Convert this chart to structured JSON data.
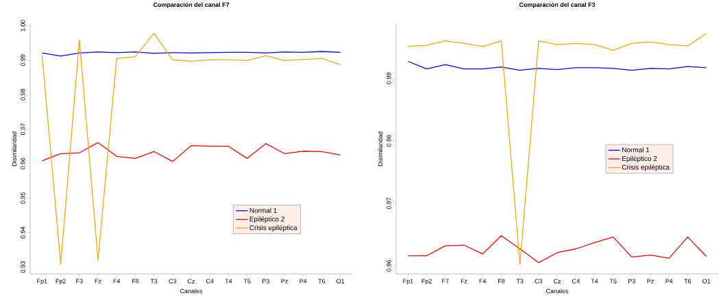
{
  "chart_data": [
    {
      "type": "line",
      "title": "Comparación del canal F7",
      "xlabel": "Canales",
      "ylabel": "Disimilaridad",
      "categories": [
        "Fp1",
        "Fp2",
        "F3",
        "Fz",
        "F4",
        "F8",
        "T3",
        "C3",
        "Cz",
        "C4",
        "T4",
        "T5",
        "P3",
        "Pz",
        "P4",
        "T6",
        "O1"
      ],
      "series": [
        {
          "name": "Normal 1",
          "color": "#0000ff",
          "values": [
            0.9921,
            0.9912,
            0.9921,
            0.9924,
            0.9922,
            0.9924,
            0.992,
            0.9922,
            0.9921,
            0.9922,
            0.9923,
            0.9923,
            0.9921,
            0.9924,
            0.9923,
            0.9925,
            0.9923
          ]
        },
        {
          "name": "Epiléptico 2",
          "color": "#ff0000",
          "values": [
            0.9608,
            0.9629,
            0.9631,
            0.9661,
            0.9621,
            0.9615,
            0.9635,
            0.9606,
            0.9652,
            0.965,
            0.965,
            0.9615,
            0.9658,
            0.9629,
            0.9636,
            0.9635,
            0.9625
          ]
        },
        {
          "name": "Crisis epiléptica",
          "color": "#ffa500",
          "values": [
            0.9914,
            0.9308,
            0.9959,
            0.932,
            0.9905,
            0.991,
            0.9978,
            0.9901,
            0.9897,
            0.9901,
            0.9901,
            0.9899,
            0.9913,
            0.9899,
            0.9902,
            0.9905,
            0.9887
          ]
        }
      ],
      "ylim": [
        0.928,
        1.0005
      ],
      "yticks": [
        0.93,
        0.94,
        0.95,
        0.96,
        0.97,
        0.98,
        0.99,
        {
          "value": 1.0,
          "label": "1.00"
        }
      ],
      "legend": "bottom right"
    },
    {
      "type": "line",
      "title": "Comparación del canal F3",
      "xlabel": "Canales",
      "ylabel": "Disimilaridad",
      "categories": [
        "Fp1",
        "Fp2",
        "F7",
        "Fz",
        "F4",
        "F8",
        "T3",
        "C3",
        "Cz",
        "C4",
        "T4",
        "T5",
        "P3",
        "Pz",
        "P4",
        "T6",
        "O1"
      ],
      "series": [
        {
          "name": "Normal 1",
          "color": "#0000ff",
          "values": [
            0.9927,
            0.9915,
            0.9922,
            0.9915,
            0.9915,
            0.9918,
            0.9913,
            0.9916,
            0.9914,
            0.9917,
            0.9917,
            0.9916,
            0.9913,
            0.9916,
            0.9915,
            0.9919,
            0.9917
          ]
        },
        {
          "name": "Epiléptico 2",
          "color": "#ff0000",
          "values": [
            0.9616,
            0.9616,
            0.9632,
            0.9633,
            0.9619,
            0.9648,
            0.9627,
            0.9605,
            0.9621,
            0.9627,
            0.9637,
            0.9646,
            0.9614,
            0.9617,
            0.9612,
            0.9646,
            0.9615
          ]
        },
        {
          "name": "Crisis epiléptica",
          "color": "#ffa500",
          "values": [
            0.9951,
            0.9953,
            0.996,
            0.9956,
            0.9951,
            0.996,
            0.9602,
            0.996,
            0.9954,
            0.9956,
            0.9954,
            0.9945,
            0.9956,
            0.9958,
            0.9954,
            0.9952,
            0.9972
          ]
        }
      ],
      "ylim": [
        0.9587,
        0.9987
      ],
      "yticks": [
        0.96,
        0.97,
        0.98,
        0.99
      ],
      "legend": "right"
    }
  ]
}
